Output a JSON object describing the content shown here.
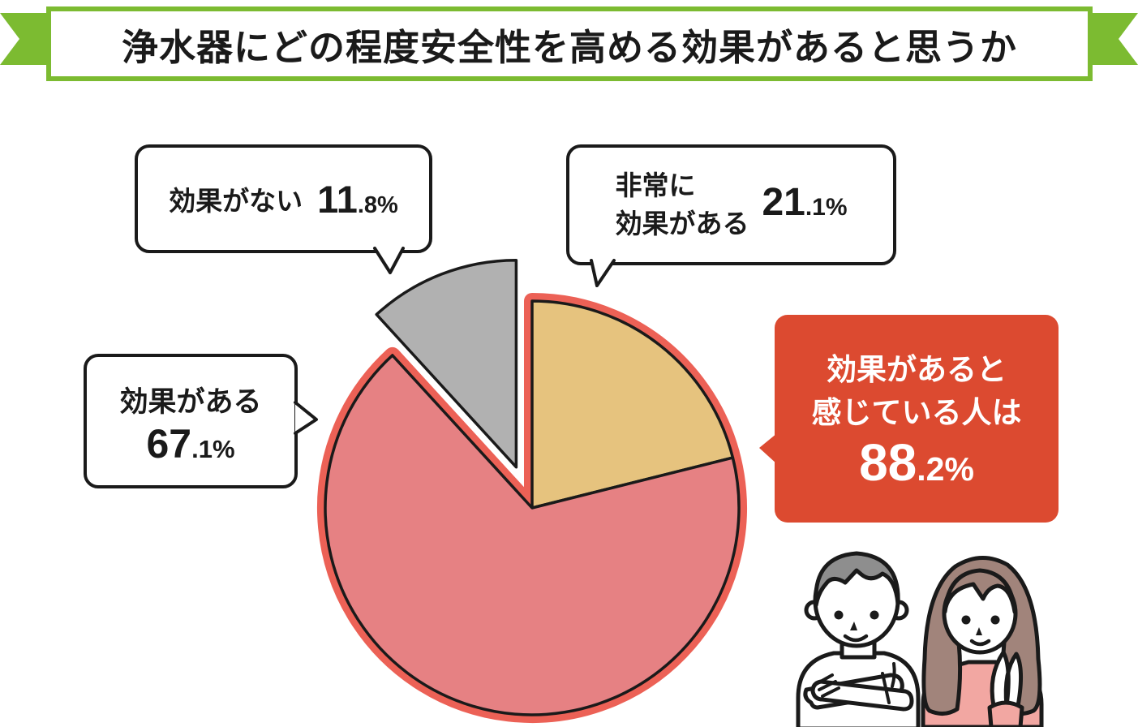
{
  "title": "浄水器にどの程度安全性を高める効果があると思うか",
  "chart_data": {
    "type": "pie",
    "title": "浄水器にどの程度安全性を高める効果があると思うか",
    "unit": "%",
    "direction": "clockwise",
    "start_angle_deg": 0,
    "slices": [
      {
        "label": "非常に効果がある",
        "value": 21.1,
        "color": "#E6C37E",
        "exploded": false
      },
      {
        "label": "効果がある",
        "value": 67.1,
        "color": "#E68183",
        "exploded": false
      },
      {
        "label": "効果がない",
        "value": 11.8,
        "color": "#B1B1B1",
        "exploded": true
      }
    ],
    "group_highlight": {
      "label": "効果があると感じている人は",
      "value": 88.2,
      "ring_color": "#EC6156"
    }
  },
  "callouts": {
    "no_effect": {
      "label": "効果がない",
      "value_main": "11",
      "value_sub": ".8%"
    },
    "very_effective": {
      "label_line1": "非常に",
      "label_line2": "効果がある",
      "value_main": "21",
      "value_sub": ".1%"
    },
    "effective": {
      "label": "効果がある",
      "value_main": "67",
      "value_sub": ".1%"
    },
    "summary": {
      "line1": "効果があると",
      "line2": "感じている人は",
      "value_main": "88",
      "value_sub": ".2%"
    }
  },
  "colors": {
    "banner_green": "#7CBB31",
    "outline_black": "#1A1A1A",
    "ring_red": "#EC6156",
    "summary_red": "#DC4A30",
    "man_hair_gray": "#8E8E8E",
    "woman_hair_brown": "#A1847B",
    "woman_sweater_pink": "#F2A7A2",
    "background": "#FFFFFF"
  },
  "illustration": {
    "man_label": "man with arms crossed",
    "woman_label": "woman with hands clasped"
  }
}
